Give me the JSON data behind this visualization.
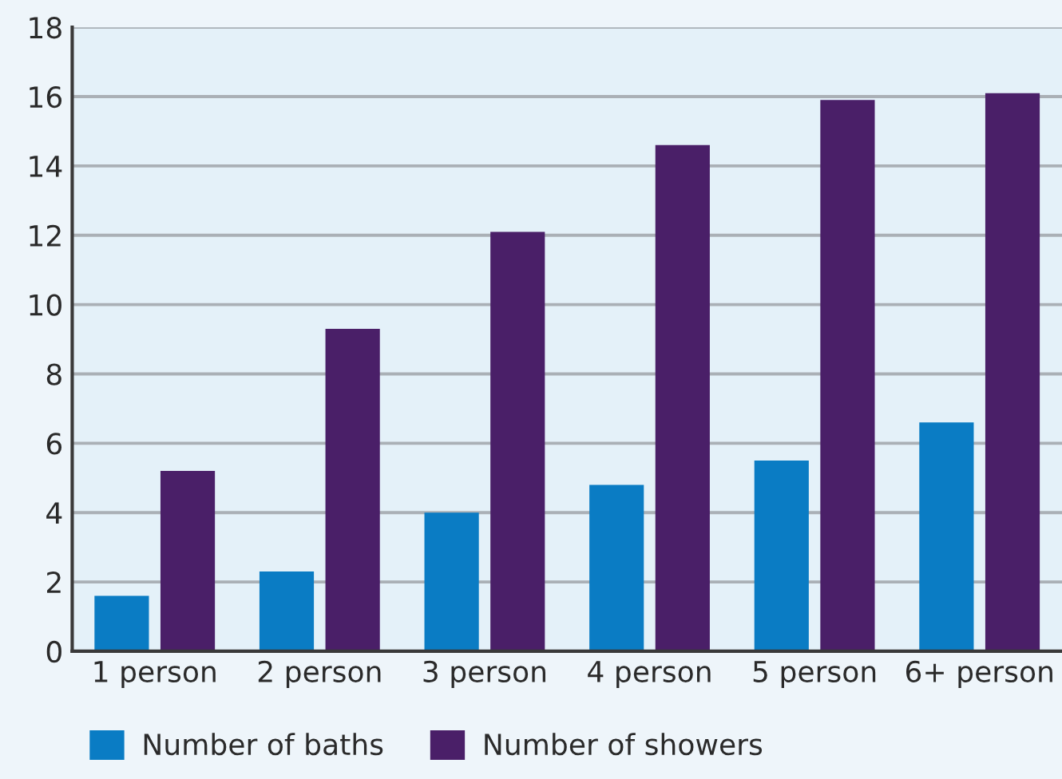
{
  "chart_data": {
    "type": "bar",
    "categories": [
      "1 person",
      "2 person",
      "3 person",
      "4 person",
      "5 person",
      "6+ person"
    ],
    "series": [
      {
        "name": "Number of baths",
        "color": "#0a7cc4",
        "values": [
          1.6,
          2.3,
          4.0,
          4.8,
          5.5,
          6.6
        ]
      },
      {
        "name": "Number of showers",
        "color": "#4a1f68",
        "values": [
          5.2,
          9.3,
          12.1,
          14.6,
          15.9,
          16.1
        ]
      }
    ],
    "ylim": [
      0,
      18
    ],
    "yticks": [
      0,
      2,
      4,
      6,
      8,
      10,
      12,
      14,
      16,
      18
    ],
    "grid": "y",
    "legend": "bottom"
  }
}
